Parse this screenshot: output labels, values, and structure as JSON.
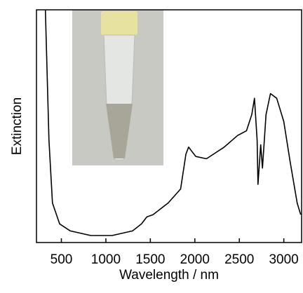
{
  "chart_data": {
    "type": "line",
    "x_label": "Wavelength / nm",
    "y_label": "Extinction",
    "x": [
      320,
      360,
      400,
      480,
      600,
      830,
      1070,
      1300,
      1400,
      1460,
      1530,
      1700,
      1840,
      1900,
      1930,
      2010,
      2130,
      2330,
      2480,
      2580,
      2640,
      2670,
      2700,
      2710,
      2740,
      2760,
      2800,
      2850,
      2920,
      3000,
      3070,
      3150,
      3190
    ],
    "series": [
      {
        "color": "#000000",
        "values": [
          1.0,
          0.44,
          0.17,
          0.08,
          0.05,
          0.03,
          0.03,
          0.05,
          0.08,
          0.11,
          0.12,
          0.17,
          0.23,
          0.38,
          0.41,
          0.37,
          0.36,
          0.41,
          0.46,
          0.48,
          0.55,
          0.62,
          0.44,
          0.25,
          0.42,
          0.32,
          0.55,
          0.64,
          0.62,
          0.52,
          0.35,
          0.17,
          0.12
        ]
      }
    ],
    "xlim": [
      220,
      3200
    ],
    "xticks": [
      500,
      1000,
      1500,
      2000,
      2500,
      3000
    ],
    "ylim": [
      0,
      1
    ]
  }
}
